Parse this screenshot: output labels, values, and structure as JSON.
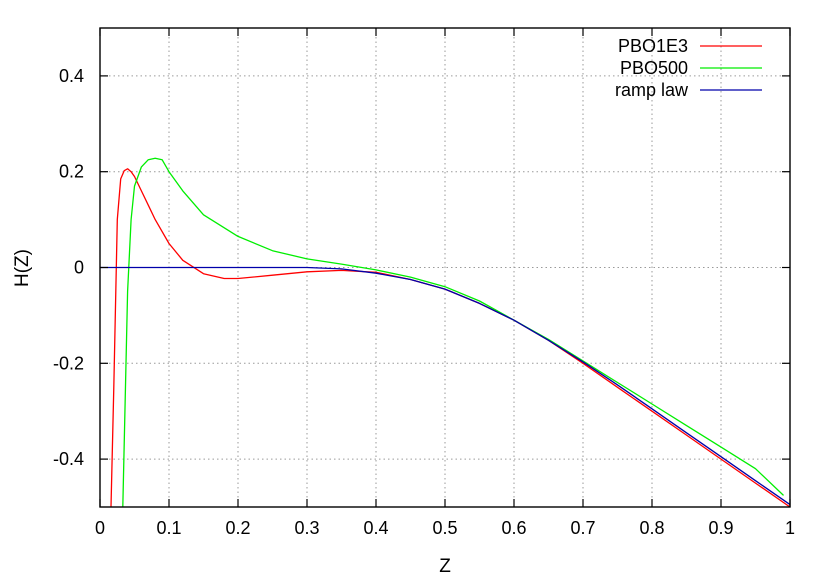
{
  "chart_data": {
    "type": "line",
    "title": "",
    "xlabel": "Z",
    "ylabel": "H(Z)",
    "xlim": [
      0,
      1
    ],
    "ylim": [
      -0.5,
      0.5
    ],
    "x_ticks": [
      "0",
      "0.1",
      "0.2",
      "0.3",
      "0.4",
      "0.5",
      "0.6",
      "0.7",
      "0.8",
      "0.9",
      "1"
    ],
    "y_ticks": [
      "0.4",
      "0.2",
      "0",
      "-0.2",
      "-0.4"
    ],
    "grid": true,
    "legend_position": "top-right",
    "series": [
      {
        "name": "PBO1E3",
        "color": "#ff0000",
        "x": [
          0.016,
          0.02,
          0.025,
          0.03,
          0.035,
          0.04,
          0.045,
          0.05,
          0.06,
          0.07,
          0.08,
          0.1,
          0.12,
          0.15,
          0.18,
          0.2,
          0.25,
          0.3,
          0.35,
          0.4,
          0.45,
          0.5,
          0.55,
          0.6,
          0.65,
          0.7,
          0.75,
          0.8,
          0.85,
          0.9,
          0.95,
          1.0
        ],
        "y": [
          -0.5,
          -0.25,
          0.1,
          0.185,
          0.202,
          0.206,
          0.2,
          0.19,
          0.16,
          0.13,
          0.1,
          0.05,
          0.015,
          -0.013,
          -0.023,
          -0.023,
          -0.016,
          -0.009,
          -0.006,
          -0.01,
          -0.025,
          -0.045,
          -0.075,
          -0.11,
          -0.152,
          -0.2,
          -0.25,
          -0.3,
          -0.35,
          -0.4,
          -0.45,
          -0.5
        ]
      },
      {
        "name": "PBO500",
        "color": "#00ee00",
        "x": [
          0.033,
          0.04,
          0.045,
          0.05,
          0.06,
          0.07,
          0.08,
          0.09,
          0.1,
          0.12,
          0.15,
          0.2,
          0.25,
          0.3,
          0.35,
          0.4,
          0.45,
          0.5,
          0.55,
          0.6,
          0.65,
          0.7,
          0.75,
          0.8,
          0.85,
          0.9,
          0.95,
          0.99
        ],
        "y": [
          -0.5,
          -0.05,
          0.1,
          0.17,
          0.21,
          0.225,
          0.228,
          0.225,
          0.2,
          0.16,
          0.11,
          0.065,
          0.035,
          0.018,
          0.007,
          -0.005,
          -0.02,
          -0.04,
          -0.07,
          -0.11,
          -0.15,
          -0.195,
          -0.24,
          -0.285,
          -0.33,
          -0.375,
          -0.42,
          -0.475
        ]
      },
      {
        "name": "ramp law",
        "color": "#0000aa",
        "x": [
          0.0,
          0.1,
          0.2,
          0.3,
          0.35,
          0.4,
          0.45,
          0.5,
          0.55,
          0.6,
          0.65,
          0.7,
          0.75,
          0.8,
          0.85,
          0.9,
          0.95,
          1.0
        ],
        "y": [
          0.0,
          0.0,
          0.0,
          0.0,
          -0.003,
          -0.012,
          -0.025,
          -0.045,
          -0.075,
          -0.11,
          -0.152,
          -0.197,
          -0.245,
          -0.295,
          -0.345,
          -0.395,
          -0.445,
          -0.495
        ]
      }
    ]
  }
}
